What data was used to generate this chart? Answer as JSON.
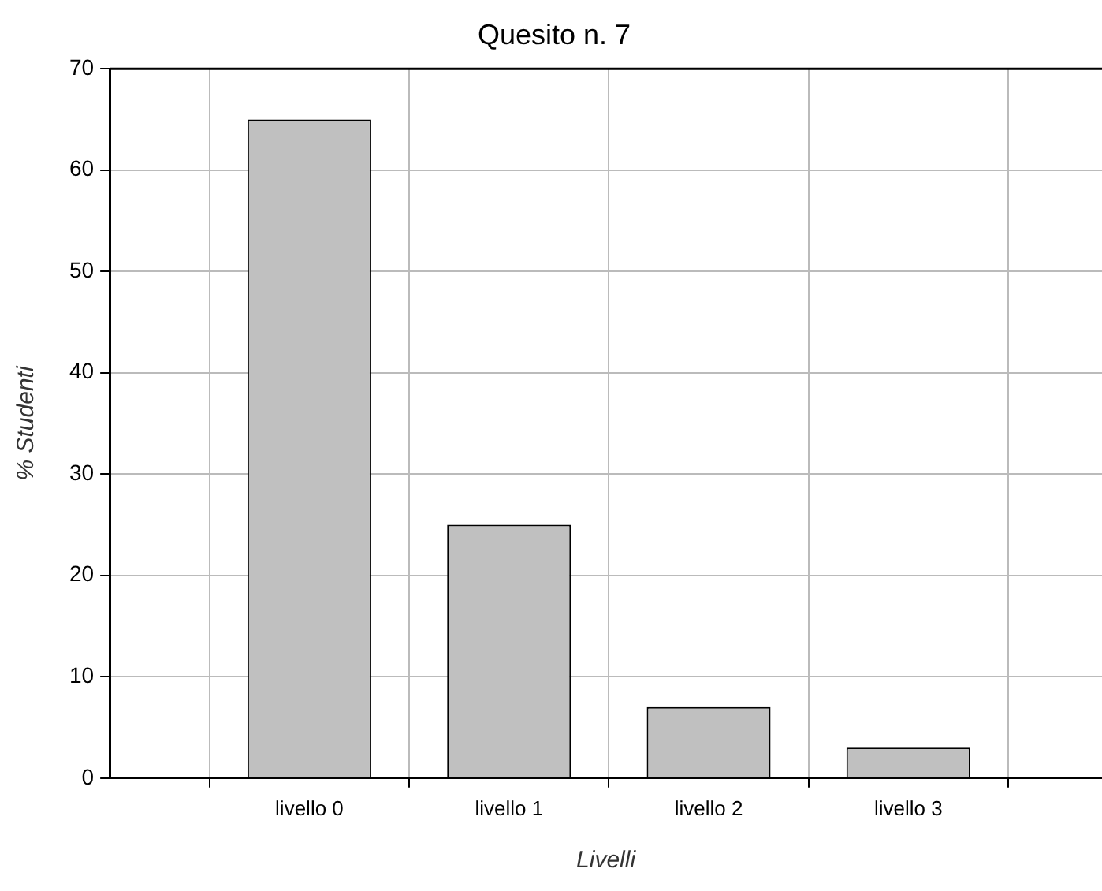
{
  "chart_data": {
    "type": "bar",
    "title": "Quesito n. 7",
    "xlabel": "Livelli",
    "ylabel": "% Studenti",
    "categories": [
      "livello 0",
      "livello 1",
      "livello 2",
      "livello 3"
    ],
    "values": [
      65,
      25,
      7,
      3
    ],
    "color": "#c0c0c0",
    "ylim": [
      0,
      70
    ],
    "yticks": [
      0,
      10,
      20,
      30,
      40,
      50,
      60,
      70
    ],
    "grid": true,
    "legend": false
  }
}
